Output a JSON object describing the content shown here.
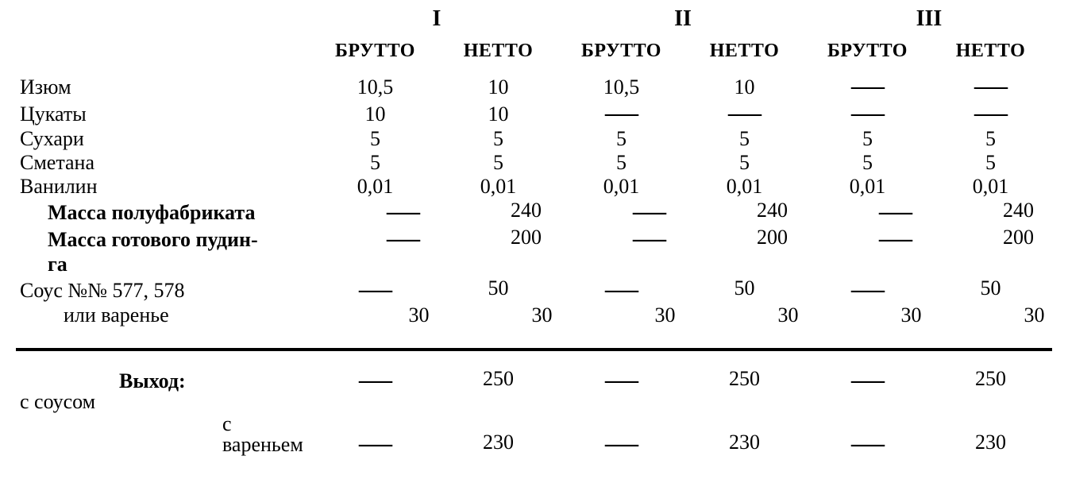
{
  "colors": {
    "text": "#000000",
    "background": "#ffffff",
    "rule": "#000000"
  },
  "font": {
    "family": "Times New Roman",
    "body_size_pt": 20,
    "header_size_pt": 18
  },
  "dash": "—",
  "groups": [
    "I",
    "II",
    "III"
  ],
  "subheaders": {
    "gross": "БРУТТО",
    "net": "НЕТТО"
  },
  "rows": [
    {
      "label": "Изюм",
      "bold": false,
      "indent": 0,
      "v": [
        "10,5",
        "10",
        "10,5",
        "10",
        "—",
        "—"
      ]
    },
    {
      "label": "Цукаты",
      "bold": false,
      "indent": 0,
      "v": [
        "10",
        "10",
        "—",
        "—",
        "—",
        "—"
      ]
    },
    {
      "label": "Сухари",
      "bold": false,
      "indent": 0,
      "v": [
        "5",
        "5",
        "5",
        "5",
        "5",
        "5"
      ]
    },
    {
      "label": "Сметана",
      "bold": false,
      "indent": 0,
      "v": [
        "5",
        "5",
        "5",
        "5",
        "5",
        "5"
      ]
    },
    {
      "label": "Ванилин",
      "bold": false,
      "indent": 0,
      "v": [
        "0,01",
        "0,01",
        "0,01",
        "0,01",
        "0,01",
        "0,01"
      ]
    },
    {
      "label": "Масса полуфабриката",
      "bold": true,
      "indent": 1,
      "v": [
        "—",
        "240",
        "—",
        "240",
        "—",
        "240"
      ]
    },
    {
      "label": "Масса готового пудин-",
      "bold": true,
      "indent": 1,
      "v": [
        "—",
        "200",
        "—",
        "200",
        "—",
        "200"
      ]
    },
    {
      "label": "га",
      "bold": true,
      "indent": 1,
      "v": [
        "",
        "",
        "",
        "",
        "",
        ""
      ]
    },
    {
      "label": "Соус №№ 577, 578",
      "bold": false,
      "indent": 0,
      "v": [
        "—",
        "50",
        "—",
        "50",
        "—",
        "50"
      ]
    },
    {
      "label": "или варенье",
      "bold": false,
      "indent": 2,
      "v": [
        "30",
        "30",
        "30",
        "30",
        "30",
        "30"
      ]
    }
  ],
  "output": {
    "label": "Выход:",
    "lines": [
      {
        "label": "с соусом",
        "v": [
          "—",
          "250",
          "—",
          "250",
          "—",
          "250"
        ]
      },
      {
        "label": "с вареньем",
        "v": [
          "—",
          "230",
          "—",
          "230",
          "—",
          "230"
        ]
      }
    ]
  }
}
